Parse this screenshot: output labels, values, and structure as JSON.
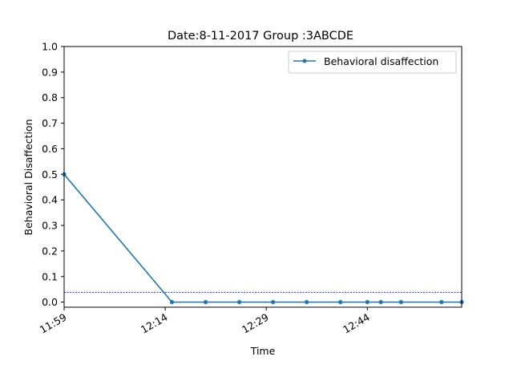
{
  "chart_data": {
    "type": "line",
    "title": "Date:8-11-2017 Group :3ABCDE",
    "xlabel": "Time",
    "ylabel": "Behavioral Disaffection",
    "x_ticks": [
      "11:59",
      "12:14",
      "12:29",
      "12:44"
    ],
    "y_ticks": [
      "0.0",
      "0.1",
      "0.2",
      "0.3",
      "0.4",
      "0.5",
      "0.6",
      "0.7",
      "0.8",
      "0.9",
      "1.0"
    ],
    "xlim": [
      "11:59",
      "12:58"
    ],
    "ylim": [
      -0.02,
      1.0
    ],
    "grid": false,
    "legend": {
      "position": "top-right"
    },
    "series": [
      {
        "name": "Behavioral disaffection",
        "color": "#1f77b4",
        "x": [
          "11:59",
          "12:15",
          "12:20",
          "12:25",
          "12:30",
          "12:35",
          "12:40",
          "12:44",
          "12:46",
          "12:49",
          "12:55",
          "12:58"
        ],
        "y": [
          0.5,
          0.0,
          0.0,
          0.0,
          0.0,
          0.0,
          0.0,
          0.0,
          0.0,
          0.0,
          0.0,
          0.0
        ]
      }
    ],
    "reference_line": {
      "y": 0.038,
      "color": "#0000ff",
      "style": "dashed"
    }
  }
}
